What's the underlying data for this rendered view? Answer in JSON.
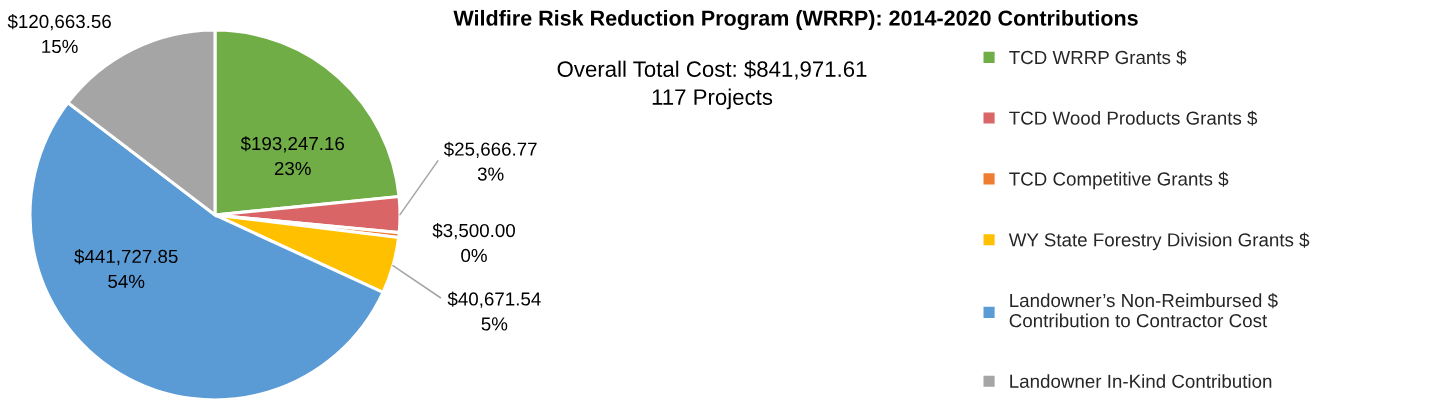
{
  "chart_data": {
    "type": "pie",
    "title": "Wildfire Risk Reduction Program (WRRP): 2014-2020 Contributions",
    "subtitle": "Overall Total Cost: $841,971.61\n117 Projects",
    "categories": [
      "TCD WRRP Grants $",
      "TCD Wood Products Grants $",
      "TCD Competitive Grants $",
      "WY State Forestry Division Grants $",
      "Landowner’s Non-Reimbursed $\nContribution to Contractor Cost",
      "Landowner In-Kind Contribution"
    ],
    "values": [
      193247.16,
      25666.77,
      3500.0,
      40671.54,
      441727.85,
      120663.56
    ],
    "colors": [
      "#70ad47",
      "#d96566",
      "#ed7d31",
      "#ffc000",
      "#5b9bd5",
      "#a5a5a5"
    ],
    "value_labels": [
      "$193,247.16\n23%",
      "$25,666.77\n3%",
      "$3,500.00\n0%",
      "$40,671.54\n5%",
      "$441,727.85\n54%",
      "$120,663.56\n15%"
    ],
    "legend": "right"
  }
}
